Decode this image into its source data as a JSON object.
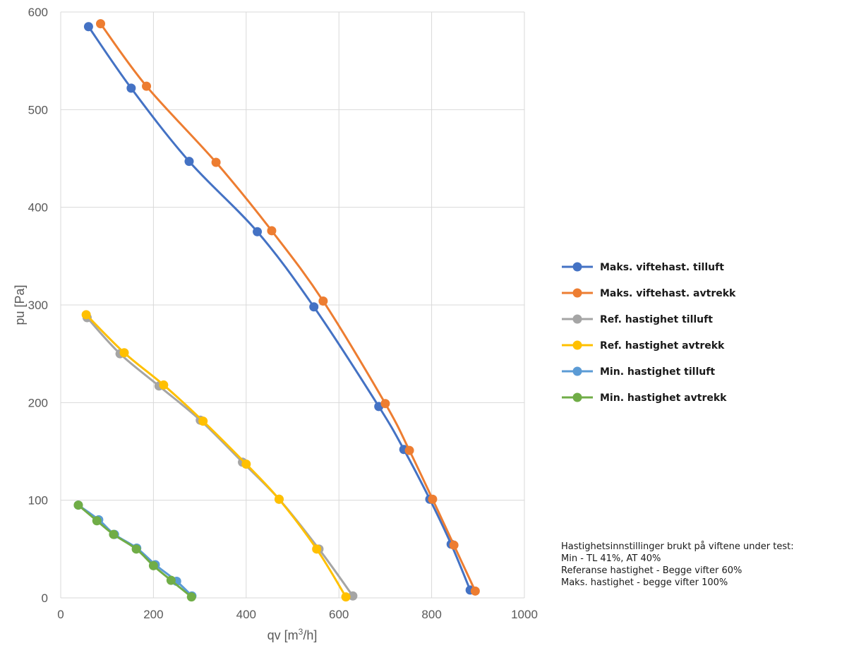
{
  "chart_data": {
    "type": "line",
    "xlabel": "qv [m",
    "xlabel_sup": "3",
    "xlabel_end": "/h]",
    "ylabel": "pu [Pa]",
    "xlim": [
      0,
      1000
    ],
    "ylim": [
      0,
      600
    ],
    "x_ticks": [
      "0",
      "200",
      "400",
      "600",
      "800",
      "1000"
    ],
    "y_ticks": [
      "0",
      "100",
      "200",
      "300",
      "400",
      "500",
      "600"
    ],
    "grid": true,
    "legend_position": "right",
    "series": [
      {
        "name": "Maks. viftehast. tilluft",
        "color": "#4472C4",
        "points": [
          [
            60,
            585
          ],
          [
            152,
            522
          ],
          [
            277,
            447
          ],
          [
            424,
            375
          ],
          [
            546,
            298
          ],
          [
            686,
            196
          ],
          [
            740,
            152
          ],
          [
            796,
            101
          ],
          [
            842,
            55
          ],
          [
            883,
            8
          ]
        ]
      },
      {
        "name": "Maks. viftehast. avtrekk",
        "color": "#ED7D31",
        "points": [
          [
            86,
            588
          ],
          [
            185,
            524
          ],
          [
            335,
            446
          ],
          [
            455,
            376
          ],
          [
            566,
            304
          ],
          [
            700,
            199
          ],
          [
            752,
            151
          ],
          [
            802,
            101
          ],
          [
            848,
            54
          ],
          [
            894,
            7
          ]
        ]
      },
      {
        "name": "Ref. hastighet tilluft",
        "color": "#A5A5A5",
        "points": [
          [
            57,
            287
          ],
          [
            128,
            250
          ],
          [
            212,
            217
          ],
          [
            301,
            182
          ],
          [
            392,
            139
          ],
          [
            471,
            101
          ],
          [
            557,
            50
          ],
          [
            630,
            2
          ]
        ]
      },
      {
        "name": "Ref. hastighet avtrekk",
        "color": "#FFC000",
        "points": [
          [
            55,
            290
          ],
          [
            137,
            251
          ],
          [
            222,
            218
          ],
          [
            307,
            181
          ],
          [
            400,
            137
          ],
          [
            471,
            101
          ],
          [
            552,
            50
          ],
          [
            615,
            1
          ]
        ]
      },
      {
        "name": "Min. hastighet tilluft",
        "color": "#5B9BD5",
        "points": [
          [
            38,
            95
          ],
          [
            82,
            80
          ],
          [
            116,
            65
          ],
          [
            164,
            51
          ],
          [
            204,
            34
          ],
          [
            250,
            17
          ],
          [
            283,
            2
          ]
        ]
      },
      {
        "name": "Min. hastighet avtrekk",
        "color": "#70AD47",
        "points": [
          [
            38,
            95
          ],
          [
            78,
            79
          ],
          [
            114,
            65
          ],
          [
            163,
            50
          ],
          [
            200,
            33
          ],
          [
            238,
            18
          ],
          [
            282,
            1
          ]
        ]
      }
    ]
  },
  "note_lines": [
    "Hastighetsinnstillinger brukt på viftene under test:",
    "Min - TL 41%, AT 40%",
    "Referanse hastighet - Begge vifter 60%",
    "Maks. hastighet - begge vifter 100%"
  ]
}
